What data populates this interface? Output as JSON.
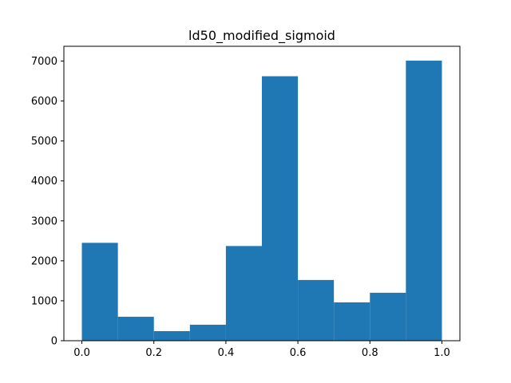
{
  "chart_data": {
    "type": "bar",
    "title": "ld50_modified_sigmoid",
    "xlabel": "",
    "ylabel": "",
    "bins": [
      [
        0.0,
        0.1
      ],
      [
        0.1,
        0.2
      ],
      [
        0.2,
        0.3
      ],
      [
        0.3,
        0.4
      ],
      [
        0.4,
        0.5
      ],
      [
        0.5,
        0.6
      ],
      [
        0.6,
        0.7
      ],
      [
        0.7,
        0.8
      ],
      [
        0.8,
        0.9
      ],
      [
        0.9,
        1.0
      ]
    ],
    "values": [
      2450,
      600,
      240,
      400,
      2370,
      6620,
      1520,
      960,
      1200,
      7010
    ],
    "xlim": [
      -0.05,
      1.05
    ],
    "ylim": [
      0,
      7370
    ],
    "xticks": [
      0.0,
      0.2,
      0.4,
      0.6,
      0.8,
      1.0
    ],
    "xtick_labels": [
      "0.0",
      "0.2",
      "0.4",
      "0.6",
      "0.8",
      "1.0"
    ],
    "yticks": [
      0,
      1000,
      2000,
      3000,
      4000,
      5000,
      6000,
      7000
    ],
    "ytick_labels": [
      "0",
      "1000",
      "2000",
      "3000",
      "4000",
      "5000",
      "6000",
      "7000"
    ],
    "bar_color": "#1f77b4",
    "grid": false
  }
}
